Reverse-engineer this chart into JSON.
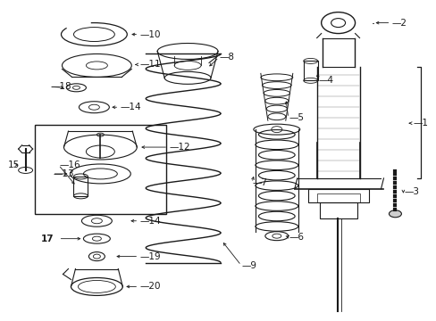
{
  "bg_color": "#ffffff",
  "line_color": "#1a1a1a",
  "fig_width": 4.89,
  "fig_height": 3.6,
  "dpi": 100,
  "xlim": [
    0,
    489
  ],
  "ylim": [
    0,
    360
  ]
}
